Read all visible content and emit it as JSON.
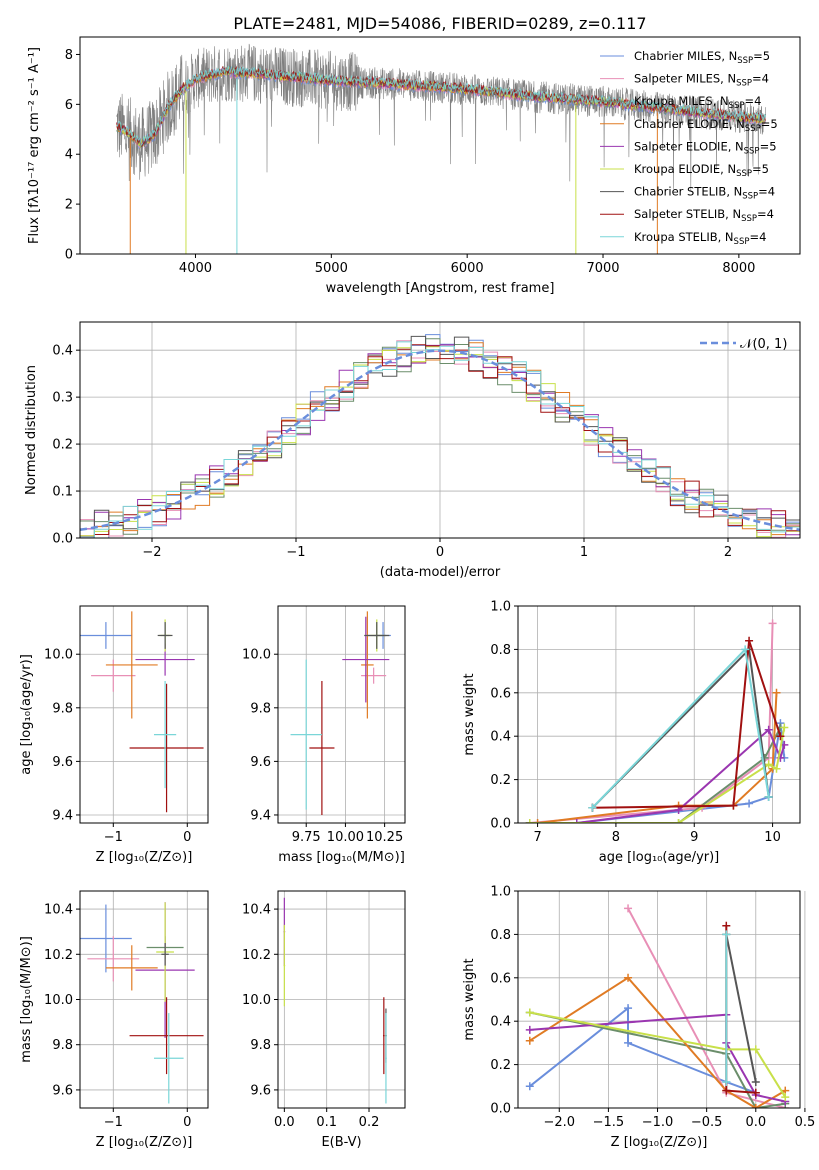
{
  "colors": {
    "chabrier_miles": "#6a8edc",
    "salpeter_miles": "#e88fb6",
    "kroupa_miles": "#6b8e6b",
    "chabrier_elodie": "#e07b24",
    "salpeter_elodie": "#9a36b0",
    "kroupa_elodie": "#c8e04a",
    "chabrier_stelib": "#555555",
    "salpeter_stelib": "#a01010",
    "kroupa_stelib": "#7ad6d8",
    "spectrum": "#808080",
    "grid": "#b0b0b0"
  },
  "chart_data": [
    {
      "id": "spectrum",
      "type": "line",
      "title": "PLATE=2481, MJD=54086, FIBERID=0289, z=0.117",
      "xlabel": "wavelength [Angstrom, rest frame]",
      "ylabel": "Flux [fλ10⁻¹⁷ erg cm⁻² s⁻¹ A⁻¹]",
      "xlim": [
        3150,
        8450
      ],
      "ylim": [
        0,
        8.7
      ],
      "grid": false,
      "xticks": [
        "4000",
        "5000",
        "6000",
        "7000",
        "8000"
      ],
      "yticks": [
        "0",
        "2",
        "4",
        "6",
        "8"
      ],
      "legend_position": "right",
      "model_continuum": {
        "x": [
          3420,
          3500,
          3600,
          3700,
          3800,
          3900,
          4000,
          4200,
          4500,
          5000,
          5500,
          6000,
          6500,
          7000,
          7500,
          8000,
          8200
        ],
        "y": [
          5.1,
          4.9,
          4.4,
          4.8,
          5.9,
          6.6,
          7.0,
          7.3,
          7.2,
          6.95,
          6.8,
          6.6,
          6.3,
          6.1,
          5.8,
          5.5,
          5.4
        ]
      },
      "legend": [
        {
          "label": "Chabrier MILES, N",
          "sub": "SSP",
          "suffix": "=5",
          "color_key": "chabrier_miles"
        },
        {
          "label": "Salpeter MILES, N",
          "sub": "SSP",
          "suffix": "=4",
          "color_key": "salpeter_miles"
        },
        {
          "label": "Kroupa MILES, N",
          "sub": "SSP",
          "suffix": "=4",
          "color_key": "kroupa_miles"
        },
        {
          "label": "Chabrier ELODIE, N",
          "sub": "SSP",
          "suffix": "=5",
          "color_key": "chabrier_elodie"
        },
        {
          "label": "Salpeter ELODIE, N",
          "sub": "SSP",
          "suffix": "=5",
          "color_key": "salpeter_elodie"
        },
        {
          "label": "Kroupa ELODIE, N",
          "sub": "SSP",
          "suffix": "=5",
          "color_key": "kroupa_elodie"
        },
        {
          "label": "Chabrier STELIB, N",
          "sub": "SSP",
          "suffix": "=4",
          "color_key": "chabrier_stelib"
        },
        {
          "label": "Salpeter STELIB, N",
          "sub": "SSP",
          "suffix": "=4",
          "color_key": "salpeter_stelib"
        },
        {
          "label": "Kroupa STELIB, N",
          "sub": "SSP",
          "suffix": "=4",
          "color_key": "kroupa_stelib"
        }
      ]
    },
    {
      "id": "residuals",
      "type": "bar",
      "xlabel": "(data-model)/error",
      "ylabel": "Normed distribution",
      "xlim": [
        -2.5,
        2.5
      ],
      "ylim": [
        0,
        0.46
      ],
      "grid": true,
      "xticks": [
        "−2",
        "−1",
        "0",
        "1",
        "2"
      ],
      "yticks": [
        "0.0",
        "0.1",
        "0.2",
        "0.3",
        "0.4"
      ],
      "legend": [
        {
          "label": "𝒩(0, 1)",
          "style": "dashed"
        }
      ],
      "legend_position": "top-right",
      "gaussian": {
        "mu": 0,
        "sigma": 1
      }
    },
    {
      "id": "age_vs_Z",
      "type": "errorbar",
      "xlabel": "Z [log₁₀(Z/Z⊙)]",
      "ylabel": "age  [log₁₀(age/yr)]",
      "xlim": [
        -1.45,
        0.28
      ],
      "ylim": [
        9.37,
        10.18
      ],
      "grid": true,
      "xticks": [
        "−1",
        "0"
      ],
      "yticks": [
        "9.4",
        "9.6",
        "9.8",
        "10.0"
      ],
      "points": [
        {
          "c": "chabrier_miles",
          "x": -1.1,
          "y": 10.07,
          "xe": 0.35,
          "ye": 0.05
        },
        {
          "c": "salpeter_miles",
          "x": -1.0,
          "y": 9.92,
          "xe": 0.3,
          "ye": 0.06
        },
        {
          "c": "kroupa_miles",
          "x": -0.3,
          "y": 10.07,
          "xe": 0.06,
          "ye": 0.05
        },
        {
          "c": "chabrier_elodie",
          "x": -0.75,
          "y": 9.96,
          "xe": 0.35,
          "ye": 0.2
        },
        {
          "c": "salpeter_elodie",
          "x": -0.3,
          "y": 9.98,
          "xe": 0.4,
          "ye": 0.06
        },
        {
          "c": "kroupa_elodie",
          "x": -0.3,
          "y": 10.07,
          "xe": 0.08,
          "ye": 0.06
        },
        {
          "c": "chabrier_stelib",
          "x": -0.3,
          "y": 10.07,
          "xe": 0.1,
          "ye": 0.05
        },
        {
          "c": "salpeter_stelib",
          "x": -0.28,
          "y": 9.65,
          "xe": 0.5,
          "ye": 0.24
        },
        {
          "c": "kroupa_stelib",
          "x": -0.3,
          "y": 9.7,
          "xe": 0.15,
          "ye": 0.2
        }
      ]
    },
    {
      "id": "age_vs_mass",
      "type": "errorbar",
      "xlabel": "mass [log₁₀(M/M⊙)]",
      "ylabel": "",
      "xlim": [
        9.57,
        10.38
      ],
      "ylim": [
        9.37,
        10.18
      ],
      "grid": true,
      "xticks": [
        "9.75",
        "10.00",
        "10.25"
      ],
      "yticks": [
        "9.4",
        "9.6",
        "9.8",
        "10.0"
      ],
      "points": [
        {
          "c": "chabrier_miles",
          "x": 10.24,
          "y": 10.07,
          "xe": 0.05,
          "ye": 0.05
        },
        {
          "c": "salpeter_miles",
          "x": 10.18,
          "y": 9.92,
          "xe": 0.08,
          "ye": 0.03
        },
        {
          "c": "kroupa_miles",
          "x": 10.2,
          "y": 10.07,
          "xe": 0.06,
          "ye": 0.05
        },
        {
          "c": "chabrier_elodie",
          "x": 10.14,
          "y": 9.96,
          "xe": 0.04,
          "ye": 0.2
        },
        {
          "c": "salpeter_elodie",
          "x": 10.13,
          "y": 9.98,
          "xe": 0.15,
          "ye": 0.16
        },
        {
          "c": "kroupa_elodie",
          "x": 10.2,
          "y": 10.07,
          "xe": 0.04,
          "ye": 0.06
        },
        {
          "c": "chabrier_stelib",
          "x": 10.2,
          "y": 10.07,
          "xe": 0.08,
          "ye": 0.05
        },
        {
          "c": "salpeter_stelib",
          "x": 9.85,
          "y": 9.65,
          "xe": 0.08,
          "ye": 0.25
        },
        {
          "c": "kroupa_stelib",
          "x": 9.75,
          "y": 9.7,
          "xe": 0.1,
          "ye": 0.28
        }
      ]
    },
    {
      "id": "weight_vs_age",
      "type": "line",
      "xlabel": "age  [log₁₀(age/yr)]",
      "ylabel": "mass weight",
      "xlim": [
        6.75,
        10.35
      ],
      "ylim": [
        0,
        1.0
      ],
      "grid": true,
      "xticks": [
        "7",
        "8",
        "9",
        "10"
      ],
      "yticks": [
        "0.0",
        "0.2",
        "0.4",
        "0.6",
        "0.8",
        "1.0"
      ],
      "series": [
        {
          "c": "chabrier_miles",
          "x": [
            7.5,
            9.7,
            9.95,
            10.1,
            10.15
          ],
          "y": [
            0.0,
            0.09,
            0.12,
            0.46,
            0.3
          ]
        },
        {
          "c": "salpeter_miles",
          "x": [
            6.9,
            9.1,
            9.95,
            10.0
          ],
          "y": [
            0.0,
            0.07,
            0.3,
            0.92
          ]
        },
        {
          "c": "kroupa_miles",
          "x": [
            6.9,
            8.8,
            9.9,
            10.1
          ],
          "y": [
            0.0,
            0.0,
            0.3,
            0.44
          ]
        },
        {
          "c": "chabrier_elodie",
          "x": [
            7.0,
            8.8,
            9.5,
            10.0,
            10.05
          ],
          "y": [
            0.0,
            0.08,
            0.08,
            0.25,
            0.6
          ]
        },
        {
          "c": "salpeter_elodie",
          "x": [
            7.5,
            8.8,
            9.95,
            10.1,
            10.15
          ],
          "y": [
            0.0,
            0.06,
            0.43,
            0.3,
            0.36
          ]
        },
        {
          "c": "kroupa_elodie",
          "x": [
            6.9,
            8.8,
            9.95,
            10.05,
            10.15
          ],
          "y": [
            0.0,
            0.0,
            0.27,
            0.25,
            0.44
          ]
        },
        {
          "c": "chabrier_stelib",
          "x": [
            7.7,
            9.7,
            9.95
          ],
          "y": [
            0.07,
            0.8,
            0.12
          ]
        },
        {
          "c": "salpeter_stelib",
          "x": [
            7.7,
            9.5,
            9.7,
            10.1
          ],
          "y": [
            0.07,
            0.08,
            0.84,
            0.4
          ]
        },
        {
          "c": "kroupa_stelib",
          "x": [
            7.7,
            9.65,
            9.95
          ],
          "y": [
            0.07,
            0.8,
            0.12
          ]
        }
      ]
    },
    {
      "id": "mass_vs_Z",
      "type": "errorbar",
      "xlabel": "Z [log₁₀(Z/Z⊙)]",
      "ylabel": "mass [log₁₀(M/M⊙)]",
      "xlim": [
        -1.45,
        0.28
      ],
      "ylim": [
        9.52,
        10.48
      ],
      "grid": true,
      "xticks": [
        "−1",
        "0"
      ],
      "yticks": [
        "9.6",
        "9.8",
        "10.0",
        "10.2",
        "10.4"
      ],
      "points": [
        {
          "c": "chabrier_miles",
          "x": -1.1,
          "y": 10.27,
          "xe": 0.35,
          "ye": 0.15
        },
        {
          "c": "salpeter_miles",
          "x": -1.0,
          "y": 10.18,
          "xe": 0.35,
          "ye": 0.1
        },
        {
          "c": "kroupa_miles",
          "x": -0.3,
          "y": 10.23,
          "xe": 0.25,
          "ye": 0.05
        },
        {
          "c": "chabrier_elodie",
          "x": -0.75,
          "y": 10.14,
          "xe": 0.35,
          "ye": 0.1
        },
        {
          "c": "salpeter_elodie",
          "x": -0.3,
          "y": 10.13,
          "xe": 0.4,
          "ye": 0.3
        },
        {
          "c": "kroupa_elodie",
          "x": -0.3,
          "y": 10.21,
          "xe": 0.12,
          "ye": 0.22
        },
        {
          "c": "chabrier_stelib",
          "x": -0.3,
          "y": 10.2,
          "xe": 0.05,
          "ye": 0.05
        },
        {
          "c": "salpeter_stelib",
          "x": -0.28,
          "y": 9.84,
          "xe": 0.5,
          "ye": 0.17
        },
        {
          "c": "kroupa_stelib",
          "x": -0.25,
          "y": 9.74,
          "xe": 0.2,
          "ye": 0.2
        }
      ]
    },
    {
      "id": "mass_vs_ebv",
      "type": "errorbar",
      "xlabel": "E(B-V)",
      "ylabel": "",
      "xlim": [
        -0.015,
        0.285
      ],
      "ylim": [
        9.52,
        10.48
      ],
      "grid": true,
      "xticks": [
        "0.0",
        "0.1",
        "0.2"
      ],
      "yticks": [
        "9.6",
        "9.8",
        "10.0",
        "10.2",
        "10.4"
      ],
      "points": [
        {
          "c": "salpeter_elodie",
          "x": 0.0,
          "y": 10.3,
          "xe": 0.002,
          "ye": 0.15
        },
        {
          "c": "kroupa_elodie",
          "x": 0.0,
          "y": 10.15,
          "xe": 0.002,
          "ye": 0.18
        },
        {
          "c": "chabrier_stelib",
          "x": 0.24,
          "y": 9.84,
          "xe": 0.002,
          "ye": 0.12
        },
        {
          "c": "salpeter_stelib",
          "x": 0.235,
          "y": 9.84,
          "xe": 0.002,
          "ye": 0.17
        },
        {
          "c": "kroupa_stelib",
          "x": 0.24,
          "y": 9.74,
          "xe": 0.002,
          "ye": 0.2
        }
      ]
    },
    {
      "id": "weight_vs_Z",
      "type": "line",
      "xlabel": "Z [log₁₀(Z/Z⊙)]",
      "ylabel": "mass weight",
      "xlim": [
        -2.42,
        0.45
      ],
      "ylim": [
        0,
        1.0
      ],
      "grid": true,
      "xticks": [
        "−2.0",
        "−1.5",
        "−1.0",
        "−0.5",
        "0.0",
        "0.5"
      ],
      "yticks": [
        "0.0",
        "0.2",
        "0.4",
        "0.6",
        "0.8",
        "1.0"
      ],
      "series": [
        {
          "c": "chabrier_miles",
          "x": [
            -2.3,
            -1.3,
            -1.3,
            -0.3,
            0.0
          ],
          "y": [
            0.1,
            0.46,
            0.3,
            0.12,
            0.07
          ]
        },
        {
          "c": "salpeter_miles",
          "x": [
            -1.3,
            -0.3,
            0.3
          ],
          "y": [
            0.92,
            0.07,
            0.0
          ]
        },
        {
          "c": "kroupa_miles",
          "x": [
            -2.3,
            -0.3,
            0.0,
            0.3
          ],
          "y": [
            0.44,
            0.25,
            0.0,
            0.02
          ]
        },
        {
          "c": "chabrier_elodie",
          "x": [
            -2.3,
            -1.3,
            -0.3,
            0.0,
            0.3
          ],
          "y": [
            0.31,
            0.6,
            0.08,
            0.0,
            0.08
          ]
        },
        {
          "c": "salpeter_elodie",
          "x": [
            -2.3,
            -0.3,
            -0.3,
            0.0,
            0.3
          ],
          "y": [
            0.36,
            0.43,
            0.3,
            0.06,
            0.03
          ]
        },
        {
          "c": "kroupa_elodie",
          "x": [
            -2.3,
            -0.3,
            0.0,
            0.3
          ],
          "y": [
            0.44,
            0.27,
            0.27,
            0.05
          ]
        },
        {
          "c": "chabrier_stelib",
          "x": [
            -0.3,
            0.0
          ],
          "y": [
            0.8,
            0.12
          ]
        },
        {
          "c": "salpeter_stelib",
          "x": [
            -0.3,
            -0.3,
            0.0
          ],
          "y": [
            0.84,
            0.08,
            0.07
          ]
        },
        {
          "c": "kroupa_stelib",
          "x": [
            -0.3,
            -0.3
          ],
          "y": [
            0.8,
            0.12
          ]
        }
      ]
    }
  ]
}
